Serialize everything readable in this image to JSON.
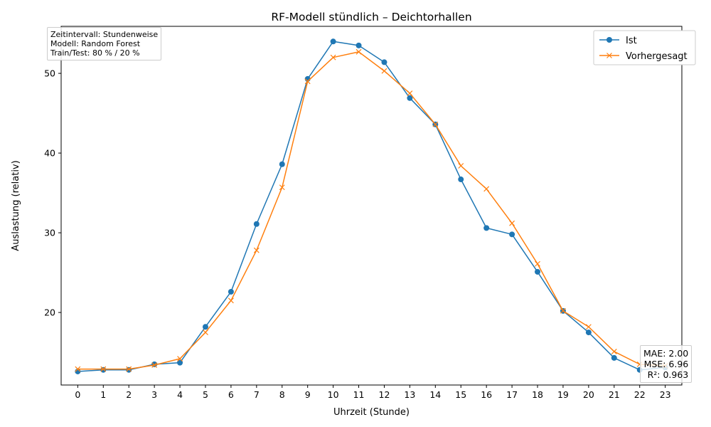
{
  "chart_data": {
    "type": "line",
    "title": "RF-Modell stündlich – Deichtorhallen",
    "xlabel": "Uhrzeit (Stunde)",
    "ylabel": "Auslastung (relativ)",
    "x": [
      0,
      1,
      2,
      3,
      4,
      5,
      6,
      7,
      8,
      9,
      10,
      11,
      12,
      13,
      14,
      15,
      16,
      17,
      18,
      19,
      20,
      21,
      22,
      23
    ],
    "xlim": [
      -0.65,
      23.65
    ],
    "ylim": [
      10.9,
      55.9
    ],
    "yticks": [
      20,
      30,
      40,
      50
    ],
    "grid": false,
    "legend_position": "top-right",
    "series": [
      {
        "name": "Ist",
        "color": "#1f77b4",
        "marker": "circle",
        "values": [
          12.6,
          12.8,
          12.8,
          13.5,
          13.7,
          18.2,
          22.6,
          31.1,
          38.6,
          49.3,
          54.0,
          53.5,
          51.4,
          46.9,
          43.6,
          36.7,
          30.6,
          29.8,
          25.1,
          20.2,
          17.5,
          14.3,
          12.8,
          13.1
        ]
      },
      {
        "name": "Vorhergesagt",
        "color": "#ff7f0e",
        "marker": "x",
        "values": [
          12.9,
          12.9,
          12.9,
          13.4,
          14.2,
          17.5,
          21.5,
          27.8,
          35.7,
          49.0,
          52.0,
          52.7,
          50.3,
          47.5,
          43.6,
          38.4,
          35.5,
          31.2,
          26.1,
          20.2,
          18.2,
          15.1,
          13.5,
          13.3
        ]
      }
    ],
    "info_box": {
      "lines": [
        "Zeitintervall: Stundenweise",
        "Modell: Random Forest",
        "Train/Test: 80 % / 20 %"
      ]
    },
    "metrics_box": {
      "lines": [
        "MAE: 2.00",
        "MSE: 6.96",
        "R²: 0.963"
      ]
    }
  }
}
